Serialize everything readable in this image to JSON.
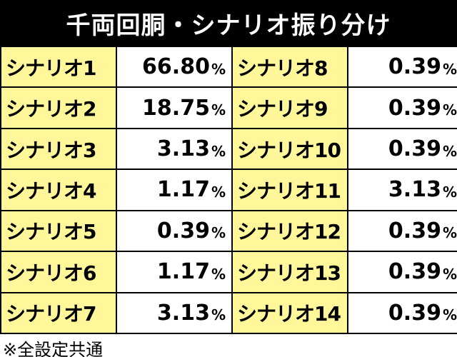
{
  "title": "千両回胴・シナリオ振り分け",
  "unit": "%",
  "rows": [
    {
      "left_label": "シナリオ1",
      "left_value": "66.80",
      "right_label": "シナリオ8",
      "right_value": "0.39"
    },
    {
      "left_label": "シナリオ2",
      "left_value": "18.75",
      "right_label": "シナリオ9",
      "right_value": "0.39"
    },
    {
      "left_label": "シナリオ3",
      "left_value": "3.13",
      "right_label": "シナリオ10",
      "right_value": "0.39"
    },
    {
      "left_label": "シナリオ4",
      "left_value": "1.17",
      "right_label": "シナリオ11",
      "right_value": "3.13"
    },
    {
      "left_label": "シナリオ5",
      "left_value": "0.39",
      "right_label": "シナリオ12",
      "right_value": "0.39"
    },
    {
      "left_label": "シナリオ6",
      "left_value": "1.17",
      "right_label": "シナリオ13",
      "right_value": "0.39"
    },
    {
      "left_label": "シナリオ7",
      "left_value": "3.13",
      "right_label": "シナリオ14",
      "right_value": "0.39"
    }
  ],
  "footnote": "※全設定共通",
  "colors": {
    "title_background": "#000000",
    "title_text": "#ffffff",
    "label_background": "#fff799",
    "value_background": "#ffffff",
    "border": "#000000"
  }
}
